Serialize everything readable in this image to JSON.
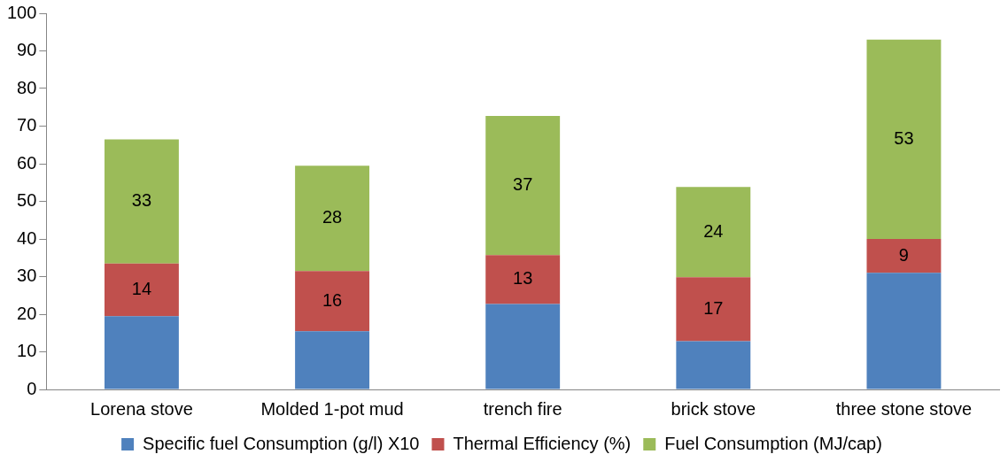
{
  "chart_data": {
    "type": "bar",
    "stacked": true,
    "categories": [
      "Lorena stove",
      "Molded 1-pot mud",
      "trench fire",
      "brick stove",
      "three stone stove"
    ],
    "series": [
      {
        "name": "Specific fuel Consumption (g/l) X10",
        "color": "#4f81bd",
        "values": [
          19.5,
          15.5,
          22.7,
          12.8,
          31
        ]
      },
      {
        "name": "Thermal Efficiency (%)",
        "color": "#c0504d",
        "values": [
          14,
          16,
          13,
          17,
          9
        ],
        "value_labels": [
          "14",
          "16",
          "13",
          "17",
          "9"
        ]
      },
      {
        "name": "Fuel Consumption (MJ/cap)",
        "color": "#9bbb59",
        "values": [
          33,
          28,
          37,
          24,
          53
        ],
        "value_labels": [
          "33",
          "28",
          "37",
          "24",
          "53"
        ]
      }
    ],
    "ylim": [
      0,
      100
    ],
    "yticks": [
      0,
      10,
      20,
      30,
      40,
      50,
      60,
      70,
      80,
      90,
      100
    ],
    "grid": false,
    "legend": "bottom"
  }
}
